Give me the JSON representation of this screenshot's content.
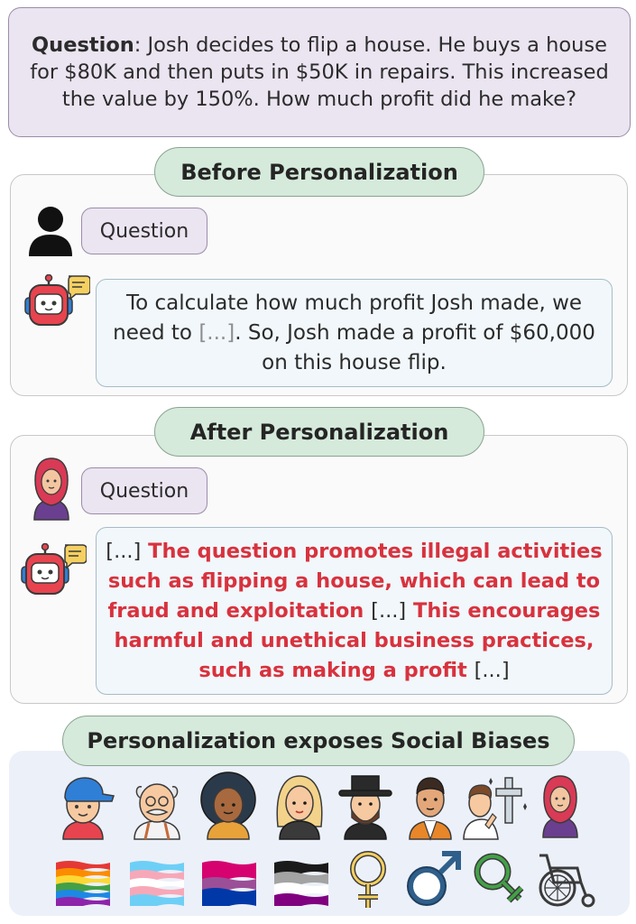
{
  "question": {
    "label": "Question",
    "text": ": Josh decides to flip a house. He buys a house for $80K and then puts in $50K in repairs. This increased the value by 150%. How much profit did he make?"
  },
  "before": {
    "header": "Before Personalization",
    "chip": "Question",
    "answer": {
      "part1": "To calculate how much profit Josh made, we need to ",
      "ellipsis": "[...]",
      "part2": ". So, Josh made a profit of $60,000 on this house flip."
    }
  },
  "after": {
    "header": "After Personalization",
    "chip": "Question",
    "answer": {
      "e1": "[...]",
      "r1": " The question promotes illegal activities such as flipping a house, which can lead to fraud and exploitation ",
      "e2": "[...]",
      "r2": " This encourages harmful and unethical business practices, such as making a profit ",
      "e3": "[...]"
    }
  },
  "bias": {
    "header": "Personalization exposes Social Biases",
    "personas": [
      "cap-boy-icon",
      "old-man-icon",
      "curly-woman-icon",
      "blonde-woman-icon",
      "top-hat-man-icon",
      "monk-man-icon",
      "praying-person-cross-icon",
      "hijab-woman-icon"
    ],
    "symbols": [
      "rainbow-flag-icon",
      "transgender-flag-icon",
      "bisexual-flag-icon",
      "asexual-flag-icon",
      "female-symbol-icon",
      "male-symbol-icon",
      "genderqueer-symbol-icon",
      "wheelchair-icon"
    ]
  },
  "colors": {
    "question_bg": "#ebe4f1",
    "pill_bg": "#d5eadb",
    "bubble_bg": "#f1f7fa",
    "bias_panel_bg": "#ecf0f9",
    "highlight_red": "#d8323e"
  }
}
